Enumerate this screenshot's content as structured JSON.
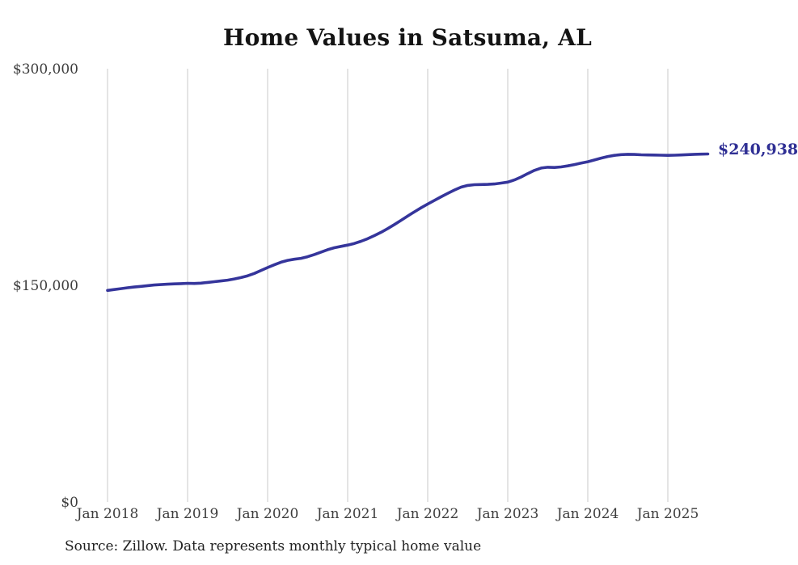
{
  "chart": {
    "title": "Home Values in Satsuma, AL",
    "source": "Source: Zillow. Data represents monthly typical home value",
    "annotation": "$240,938",
    "colors": {
      "line": "#35359b",
      "annotation": "#2f2f94",
      "gridline": "#c8c8c8",
      "tick_text": "#3d3d3d",
      "title_text": "#141414",
      "background": "#ffffff"
    }
  },
  "chart_data": {
    "type": "line",
    "title": "Home Values in Satsuma, AL",
    "xlabel": "",
    "ylabel": "",
    "ylim": [
      0,
      300000
    ],
    "grid": "vertical-only",
    "legend": "none",
    "y_axis": {
      "ticks": [
        0,
        150000,
        300000
      ],
      "tick_labels": [
        "$0",
        "$150,000",
        "$300,000"
      ]
    },
    "x_axis": {
      "tick_labels": [
        "Jan 2018",
        "Jan 2019",
        "Jan 2020",
        "Jan 2021",
        "Jan 2022",
        "Jan 2023",
        "Jan 2024",
        "Jan 2025"
      ],
      "cadence": "monthly",
      "first_point": "Jan 2018",
      "last_point": "Jul 2025"
    },
    "final_value": 240938,
    "annotation": "$240,938",
    "series": [
      {
        "name": "Typical home value",
        "monthly_values": [
          146500,
          147100,
          147700,
          148300,
          148800,
          149300,
          149800,
          150200,
          150500,
          150800,
          151000,
          151200,
          151400,
          151300,
          151500,
          152000,
          152500,
          153000,
          153600,
          154400,
          155400,
          156600,
          158200,
          160300,
          162300,
          164200,
          166000,
          167300,
          168100,
          168700,
          169800,
          171300,
          173000,
          174700,
          176000,
          177000,
          177900,
          179000,
          180500,
          182300,
          184400,
          186700,
          189300,
          192100,
          195000,
          198000,
          200900,
          203700,
          206300,
          208800,
          211300,
          213700,
          216000,
          218000,
          219200,
          219700,
          219800,
          219900,
          220200,
          220800,
          221500,
          223000,
          225000,
          227400,
          229600,
          231200,
          231800,
          231600,
          232000,
          232700,
          233600,
          234600,
          235600,
          236800,
          238100,
          239200,
          240000,
          240500,
          240700,
          240600,
          240400,
          240300,
          240200,
          240100,
          240000,
          240100,
          240300,
          240500,
          240700,
          240850,
          240938
        ]
      }
    ]
  }
}
